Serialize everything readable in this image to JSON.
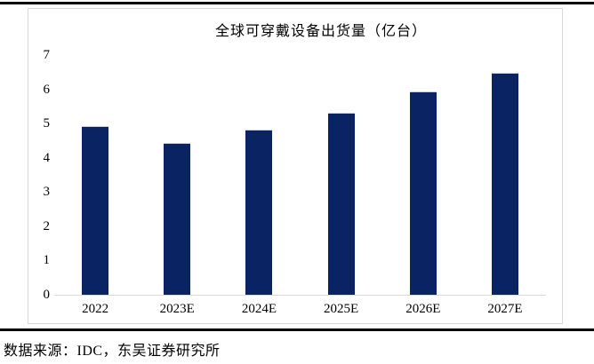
{
  "source_note": "数据来源：IDC，东吴证券研究所",
  "chart_data": {
    "type": "bar",
    "title": "全球可穿戴设备出货量（亿台）",
    "categories": [
      "2022",
      "2023E",
      "2024E",
      "2025E",
      "2026E",
      "2027E"
    ],
    "values": [
      4.9,
      4.4,
      4.8,
      5.3,
      5.9,
      6.45
    ],
    "xlabel": "",
    "ylabel": "",
    "ylim": [
      0,
      7
    ],
    "yticks": [
      0,
      1,
      2,
      3,
      4,
      5,
      6,
      7
    ],
    "grid": false,
    "legend": false,
    "bar_color": "#0A2463",
    "axis_line_color": "#D9D9D9",
    "panel_border_color": "#D8D8D8",
    "rule_color": "#000000"
  }
}
